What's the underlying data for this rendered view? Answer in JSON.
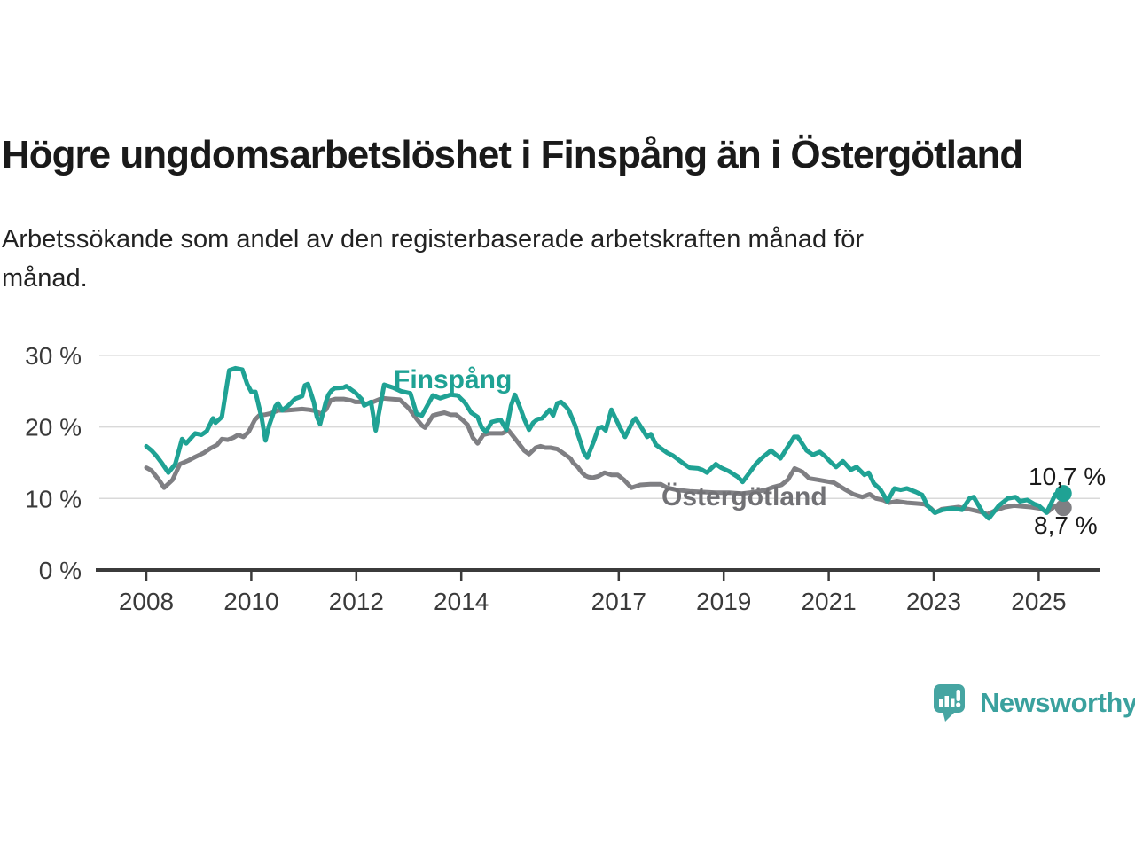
{
  "title": "Högre ungdomsarbetslöshet i Finspång än i Östergötland",
  "subtitle": "Arbetssökande som andel av den registerbaserade arbetskraften månad för\nmånad.",
  "branding": {
    "logo_text": "Newsworthy",
    "logo_icon": "bar-chart-speech-bubble",
    "logo_color": "#46a5a2"
  },
  "colors": {
    "finspang_line": "#1fa294",
    "ostergotland_line": "#7f7f83",
    "ostergotland_label": "#717175",
    "gridline": "#d9d9d9",
    "axis": "#3b3b3b",
    "text_dark": "#1a1a1a"
  },
  "chart_data": {
    "type": "line",
    "unit": "%",
    "grid": true,
    "x_range": [
      2008.0,
      2025.6
    ],
    "ylim": [
      0,
      30
    ],
    "y_axis": {
      "ticks": [
        30,
        20,
        10,
        0
      ],
      "tick_labels": [
        "30 %",
        "20 %",
        "10 %",
        "0 %"
      ]
    },
    "x_axis": {
      "ticks": [
        2008,
        2010,
        2012,
        2014,
        2017,
        2019,
        2021,
        2023,
        2025
      ],
      "tick_labels": [
        "2008",
        "2010",
        "2012",
        "2014",
        "2017",
        "2019",
        "2021",
        "2023",
        "2025"
      ]
    },
    "series": [
      {
        "name": "Finspång",
        "color": "#1fa294",
        "label_color": "#1fa294",
        "end_label": "10,7 %",
        "end_value": 10.7,
        "points": [
          [
            2008.0,
            17.3
          ],
          [
            2008.1,
            16.7
          ],
          [
            2008.2,
            15.9
          ],
          [
            2008.3,
            14.9
          ],
          [
            2008.42,
            13.6
          ],
          [
            2008.55,
            14.8
          ],
          [
            2008.68,
            18.3
          ],
          [
            2008.76,
            17.7
          ],
          [
            2008.93,
            19.1
          ],
          [
            2009.05,
            18.9
          ],
          [
            2009.15,
            19.4
          ],
          [
            2009.27,
            21.2
          ],
          [
            2009.32,
            20.6
          ],
          [
            2009.44,
            21.4
          ],
          [
            2009.58,
            27.9
          ],
          [
            2009.7,
            28.2
          ],
          [
            2009.83,
            28.0
          ],
          [
            2009.92,
            26.0
          ],
          [
            2010.0,
            24.9
          ],
          [
            2010.08,
            24.9
          ],
          [
            2010.2,
            21.2
          ],
          [
            2010.27,
            18.1
          ],
          [
            2010.34,
            20.2
          ],
          [
            2010.41,
            21.7
          ],
          [
            2010.46,
            22.9
          ],
          [
            2010.51,
            23.3
          ],
          [
            2010.59,
            22.3
          ],
          [
            2010.71,
            23.0
          ],
          [
            2010.83,
            23.9
          ],
          [
            2010.97,
            24.3
          ],
          [
            2011.02,
            25.8
          ],
          [
            2011.08,
            26.0
          ],
          [
            2011.19,
            23.5
          ],
          [
            2011.25,
            21.4
          ],
          [
            2011.31,
            20.4
          ],
          [
            2011.36,
            21.8
          ],
          [
            2011.42,
            23.5
          ],
          [
            2011.47,
            24.5
          ],
          [
            2011.53,
            25.1
          ],
          [
            2011.59,
            25.4
          ],
          [
            2011.76,
            25.5
          ],
          [
            2011.81,
            25.7
          ],
          [
            2011.98,
            24.8
          ],
          [
            2012.1,
            23.9
          ],
          [
            2012.15,
            23.0
          ],
          [
            2012.28,
            23.5
          ],
          [
            2012.37,
            19.5
          ],
          [
            2012.53,
            25.9
          ],
          [
            2012.7,
            25.5
          ],
          [
            2012.85,
            25.0
          ],
          [
            2013.03,
            24.7
          ],
          [
            2013.15,
            21.8
          ],
          [
            2013.25,
            21.6
          ],
          [
            2013.46,
            24.4
          ],
          [
            2013.6,
            24.0
          ],
          [
            2013.8,
            24.5
          ],
          [
            2013.93,
            24.4
          ],
          [
            2014.07,
            23.4
          ],
          [
            2014.19,
            22.0
          ],
          [
            2014.31,
            21.4
          ],
          [
            2014.39,
            19.9
          ],
          [
            2014.47,
            19.3
          ],
          [
            2014.58,
            20.7
          ],
          [
            2014.75,
            21.0
          ],
          [
            2014.86,
            19.6
          ],
          [
            2014.95,
            23.0
          ],
          [
            2015.02,
            24.5
          ],
          [
            2015.12,
            22.7
          ],
          [
            2015.2,
            21.1
          ],
          [
            2015.29,
            19.6
          ],
          [
            2015.37,
            20.6
          ],
          [
            2015.46,
            21.1
          ],
          [
            2015.54,
            21.2
          ],
          [
            2015.68,
            22.4
          ],
          [
            2015.75,
            21.6
          ],
          [
            2015.83,
            23.3
          ],
          [
            2015.9,
            23.5
          ],
          [
            2016.0,
            22.8
          ],
          [
            2016.05,
            22.3
          ],
          [
            2016.17,
            20.2
          ],
          [
            2016.22,
            19.0
          ],
          [
            2016.28,
            17.7
          ],
          [
            2016.33,
            16.5
          ],
          [
            2016.4,
            15.7
          ],
          [
            2016.53,
            18.1
          ],
          [
            2016.61,
            19.8
          ],
          [
            2016.68,
            20.0
          ],
          [
            2016.75,
            19.5
          ],
          [
            2016.86,
            22.4
          ],
          [
            2016.98,
            20.6
          ],
          [
            2017.03,
            19.8
          ],
          [
            2017.12,
            18.6
          ],
          [
            2017.27,
            20.8
          ],
          [
            2017.32,
            21.2
          ],
          [
            2017.44,
            19.8
          ],
          [
            2017.54,
            18.6
          ],
          [
            2017.61,
            19.0
          ],
          [
            2017.71,
            17.5
          ],
          [
            2017.92,
            16.4
          ],
          [
            2018.03,
            16.0
          ],
          [
            2018.14,
            15.4
          ],
          [
            2018.25,
            14.8
          ],
          [
            2018.35,
            14.3
          ],
          [
            2018.51,
            14.2
          ],
          [
            2018.59,
            14.0
          ],
          [
            2018.68,
            13.6
          ],
          [
            2018.76,
            14.2
          ],
          [
            2018.85,
            14.8
          ],
          [
            2018.95,
            14.3
          ],
          [
            2019.1,
            13.8
          ],
          [
            2019.27,
            13.0
          ],
          [
            2019.36,
            12.3
          ],
          [
            2019.44,
            13.1
          ],
          [
            2019.53,
            14.0
          ],
          [
            2019.61,
            14.8
          ],
          [
            2019.69,
            15.4
          ],
          [
            2019.78,
            16.0
          ],
          [
            2019.9,
            16.7
          ],
          [
            2020.08,
            15.6
          ],
          [
            2020.34,
            18.6
          ],
          [
            2020.41,
            18.6
          ],
          [
            2020.58,
            16.7
          ],
          [
            2020.7,
            16.1
          ],
          [
            2020.83,
            16.5
          ],
          [
            2020.93,
            15.9
          ],
          [
            2021.02,
            15.2
          ],
          [
            2021.14,
            14.4
          ],
          [
            2021.27,
            15.2
          ],
          [
            2021.42,
            14.0
          ],
          [
            2021.53,
            14.4
          ],
          [
            2021.68,
            13.3
          ],
          [
            2021.76,
            13.6
          ],
          [
            2021.86,
            12.1
          ],
          [
            2021.98,
            11.3
          ],
          [
            2022.12,
            9.6
          ],
          [
            2022.25,
            11.4
          ],
          [
            2022.37,
            11.2
          ],
          [
            2022.49,
            11.4
          ],
          [
            2022.66,
            10.9
          ],
          [
            2022.78,
            10.5
          ],
          [
            2022.88,
            9.0
          ],
          [
            2023.02,
            8.0
          ],
          [
            2023.17,
            8.4
          ],
          [
            2023.34,
            8.6
          ],
          [
            2023.47,
            8.5
          ],
          [
            2023.54,
            8.4
          ],
          [
            2023.68,
            10.0
          ],
          [
            2023.76,
            10.2
          ],
          [
            2023.93,
            8.1
          ],
          [
            2024.05,
            7.2
          ],
          [
            2024.24,
            9.0
          ],
          [
            2024.41,
            10.0
          ],
          [
            2024.56,
            10.2
          ],
          [
            2024.64,
            9.6
          ],
          [
            2024.78,
            9.8
          ],
          [
            2024.92,
            9.2
          ],
          [
            2025.0,
            9.0
          ],
          [
            2025.15,
            8.0
          ],
          [
            2025.32,
            10.6
          ],
          [
            2025.47,
            10.7
          ]
        ]
      },
      {
        "name": "Östergötland",
        "color": "#7f7f83",
        "label_color": "#717175",
        "end_label": "8,7 %",
        "end_value": 8.7,
        "points": [
          [
            2008.0,
            14.3
          ],
          [
            2008.1,
            13.9
          ],
          [
            2008.25,
            12.5
          ],
          [
            2008.34,
            11.5
          ],
          [
            2008.5,
            12.6
          ],
          [
            2008.64,
            14.8
          ],
          [
            2008.8,
            15.3
          ],
          [
            2008.93,
            15.8
          ],
          [
            2009.1,
            16.4
          ],
          [
            2009.22,
            17.0
          ],
          [
            2009.35,
            17.5
          ],
          [
            2009.44,
            18.3
          ],
          [
            2009.55,
            18.2
          ],
          [
            2009.66,
            18.5
          ],
          [
            2009.75,
            18.9
          ],
          [
            2009.85,
            18.6
          ],
          [
            2009.95,
            19.3
          ],
          [
            2010.07,
            21.0
          ],
          [
            2010.15,
            21.6
          ],
          [
            2010.25,
            21.7
          ],
          [
            2010.37,
            21.9
          ],
          [
            2010.51,
            22.3
          ],
          [
            2010.65,
            22.3
          ],
          [
            2010.8,
            22.4
          ],
          [
            2010.97,
            22.5
          ],
          [
            2011.1,
            22.4
          ],
          [
            2011.25,
            22.2
          ],
          [
            2011.31,
            21.8
          ],
          [
            2011.42,
            22.4
          ],
          [
            2011.51,
            23.7
          ],
          [
            2011.6,
            23.9
          ],
          [
            2011.76,
            23.9
          ],
          [
            2011.9,
            23.7
          ],
          [
            2011.98,
            23.5
          ],
          [
            2012.1,
            23.5
          ],
          [
            2012.18,
            23.2
          ],
          [
            2012.32,
            23.5
          ],
          [
            2012.49,
            24.0
          ],
          [
            2012.66,
            23.9
          ],
          [
            2012.83,
            23.8
          ],
          [
            2013.0,
            22.6
          ],
          [
            2013.15,
            21.1
          ],
          [
            2013.25,
            20.2
          ],
          [
            2013.31,
            19.9
          ],
          [
            2013.46,
            21.6
          ],
          [
            2013.56,
            21.8
          ],
          [
            2013.68,
            22.0
          ],
          [
            2013.8,
            21.7
          ],
          [
            2013.9,
            21.7
          ],
          [
            2014.02,
            21.0
          ],
          [
            2014.12,
            20.3
          ],
          [
            2014.22,
            18.5
          ],
          [
            2014.31,
            17.7
          ],
          [
            2014.42,
            18.9
          ],
          [
            2014.53,
            19.1
          ],
          [
            2014.65,
            19.1
          ],
          [
            2014.78,
            19.1
          ],
          [
            2014.9,
            19.5
          ],
          [
            2015.03,
            18.3
          ],
          [
            2015.2,
            16.7
          ],
          [
            2015.29,
            16.2
          ],
          [
            2015.42,
            17.1
          ],
          [
            2015.51,
            17.3
          ],
          [
            2015.6,
            17.1
          ],
          [
            2015.7,
            17.1
          ],
          [
            2015.83,
            16.9
          ],
          [
            2015.95,
            16.3
          ],
          [
            2016.08,
            15.6
          ],
          [
            2016.13,
            15.0
          ],
          [
            2016.22,
            14.4
          ],
          [
            2016.3,
            13.6
          ],
          [
            2016.36,
            13.2
          ],
          [
            2016.42,
            13.0
          ],
          [
            2016.5,
            12.9
          ],
          [
            2016.61,
            13.1
          ],
          [
            2016.68,
            13.4
          ],
          [
            2016.73,
            13.6
          ],
          [
            2016.86,
            13.3
          ],
          [
            2016.98,
            13.3
          ],
          [
            2017.1,
            12.6
          ],
          [
            2017.24,
            11.5
          ],
          [
            2017.41,
            11.9
          ],
          [
            2017.6,
            12.0
          ],
          [
            2017.8,
            12.0
          ],
          [
            2017.92,
            11.5
          ],
          [
            2018.1,
            11.2
          ],
          [
            2018.35,
            11.0
          ],
          [
            2018.6,
            10.9
          ],
          [
            2018.85,
            10.8
          ],
          [
            2019.1,
            10.8
          ],
          [
            2019.35,
            10.7
          ],
          [
            2019.6,
            10.9
          ],
          [
            2019.8,
            11.2
          ],
          [
            2019.95,
            11.6
          ],
          [
            2020.1,
            11.9
          ],
          [
            2020.22,
            12.6
          ],
          [
            2020.35,
            14.2
          ],
          [
            2020.5,
            13.7
          ],
          [
            2020.63,
            12.8
          ],
          [
            2020.8,
            12.6
          ],
          [
            2020.95,
            12.4
          ],
          [
            2021.1,
            12.2
          ],
          [
            2021.3,
            11.3
          ],
          [
            2021.47,
            10.6
          ],
          [
            2021.64,
            10.2
          ],
          [
            2021.78,
            10.6
          ],
          [
            2021.9,
            10.0
          ],
          [
            2022.03,
            9.8
          ],
          [
            2022.15,
            9.4
          ],
          [
            2022.3,
            9.6
          ],
          [
            2022.49,
            9.4
          ],
          [
            2022.66,
            9.3
          ],
          [
            2022.83,
            9.2
          ],
          [
            2022.95,
            8.6
          ],
          [
            2023.03,
            8.0
          ],
          [
            2023.15,
            8.5
          ],
          [
            2023.25,
            8.6
          ],
          [
            2023.47,
            8.8
          ],
          [
            2023.6,
            8.6
          ],
          [
            2023.73,
            8.4
          ],
          [
            2023.9,
            8.1
          ],
          [
            2024.02,
            7.8
          ],
          [
            2024.2,
            8.4
          ],
          [
            2024.36,
            8.8
          ],
          [
            2024.53,
            9.0
          ],
          [
            2024.7,
            8.9
          ],
          [
            2024.85,
            8.8
          ],
          [
            2025.03,
            8.6
          ],
          [
            2025.17,
            8.1
          ],
          [
            2025.32,
            9.0
          ],
          [
            2025.47,
            8.7
          ]
        ]
      }
    ]
  }
}
